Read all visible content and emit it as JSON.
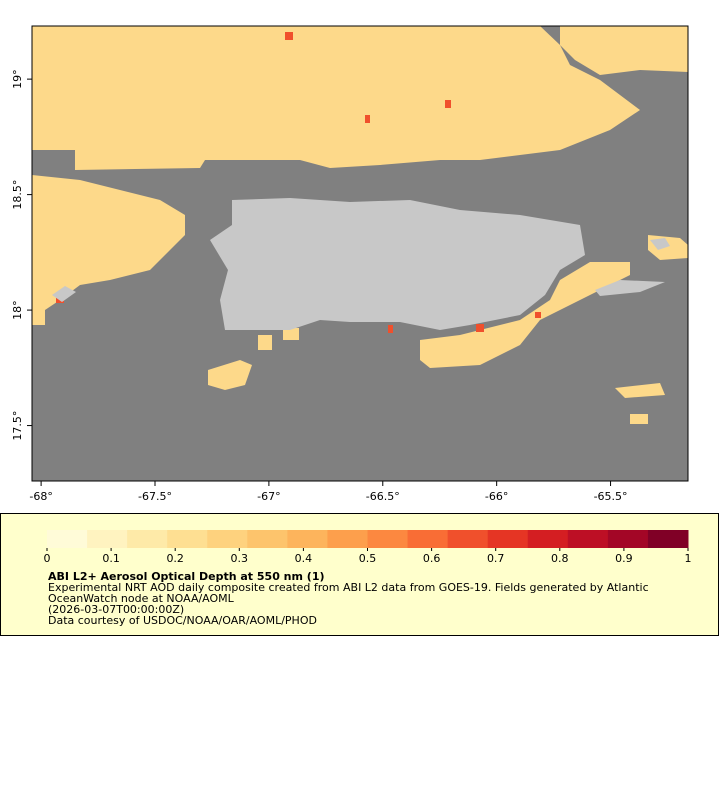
{
  "map": {
    "xlim": [
      -68.04,
      -65.16
    ],
    "ylim": [
      17.26,
      19.23
    ],
    "xticks": [
      {
        "value": -68,
        "label": "-68°"
      },
      {
        "value": -67.5,
        "label": "-67.5°"
      },
      {
        "value": -67,
        "label": "-67°"
      },
      {
        "value": -66.5,
        "label": "-66.5°"
      },
      {
        "value": -66,
        "label": "-66°"
      },
      {
        "value": -65.5,
        "label": "-65.5°"
      }
    ],
    "yticks": [
      {
        "value": 17.5,
        "label": "17.5°"
      },
      {
        "value": 18,
        "label": "18°"
      },
      {
        "value": 18.5,
        "label": "18.5°"
      },
      {
        "value": 19,
        "label": "19°"
      }
    ]
  },
  "legend": {
    "colorbar": {
      "lim": [
        0,
        1
      ],
      "ticks": [
        0,
        0.1,
        0.2,
        0.3,
        0.4,
        0.5,
        0.6,
        0.7,
        0.8,
        0.9,
        1
      ],
      "colors": [
        "#fffbd8",
        "#fff3c0",
        "#feeaa8",
        "#fedf92",
        "#fed27e",
        "#fdc46c",
        "#fdb45c",
        "#fd9f4c",
        "#fc8840",
        "#f96d35",
        "#f0502c",
        "#e53524",
        "#d41e22",
        "#bd0f25",
        "#a30626",
        "#800026"
      ]
    },
    "title": "ABI L2+ Aerosol Optical Depth at 550 nm (1)",
    "description": "Experimental NRT AOD daily composite created from ABI L2 data from GOES-19. Fields generated by Atlantic OceanWatch node at NOAA/AOML",
    "time": "(2026-03-07T00:00:00Z)",
    "credit": "Data courtesy of USDOC/NOAA/OAR/AOML/PHOD"
  }
}
